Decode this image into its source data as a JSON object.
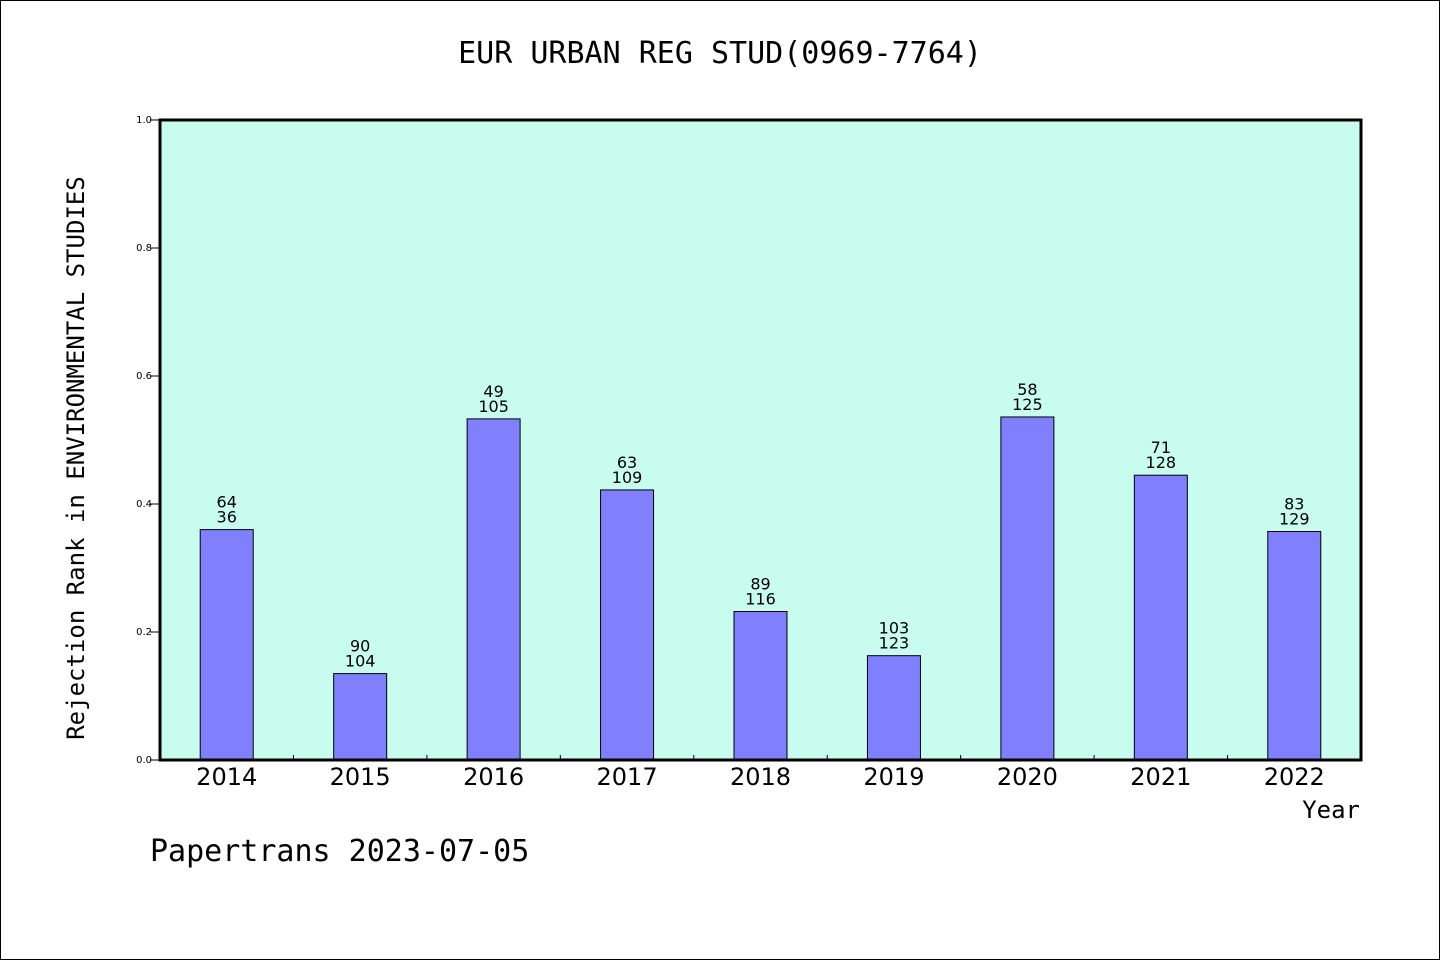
{
  "chart_data": {
    "type": "bar",
    "title": "EUR URBAN REG STUD(0969-7764)",
    "xlabel": "Year",
    "ylabel": "Rejection Rank in ENVIRONMENTAL STUDIES",
    "footer": "Papertrans 2023-07-05",
    "categories": [
      "2014",
      "2015",
      "2016",
      "2017",
      "2018",
      "2019",
      "2020",
      "2021",
      "2022"
    ],
    "values": [
      0.36,
      0.135,
      0.533,
      0.422,
      0.232,
      0.163,
      0.536,
      0.445,
      0.357
    ],
    "label_top": [
      "64",
      "90",
      "49",
      "63",
      "89",
      "103",
      "58",
      "71",
      "83"
    ],
    "label_bottom": [
      "36",
      "104",
      "105",
      "109",
      "116",
      "123",
      "125",
      "128",
      "129"
    ],
    "ylim": [
      0,
      1.0
    ],
    "yticks": [
      "0.0",
      "0.2",
      "0.4",
      "0.6",
      "0.8",
      "1.0"
    ],
    "plot_background": "#c8fcee",
    "bar_color": "#8080ff",
    "grid": false
  }
}
